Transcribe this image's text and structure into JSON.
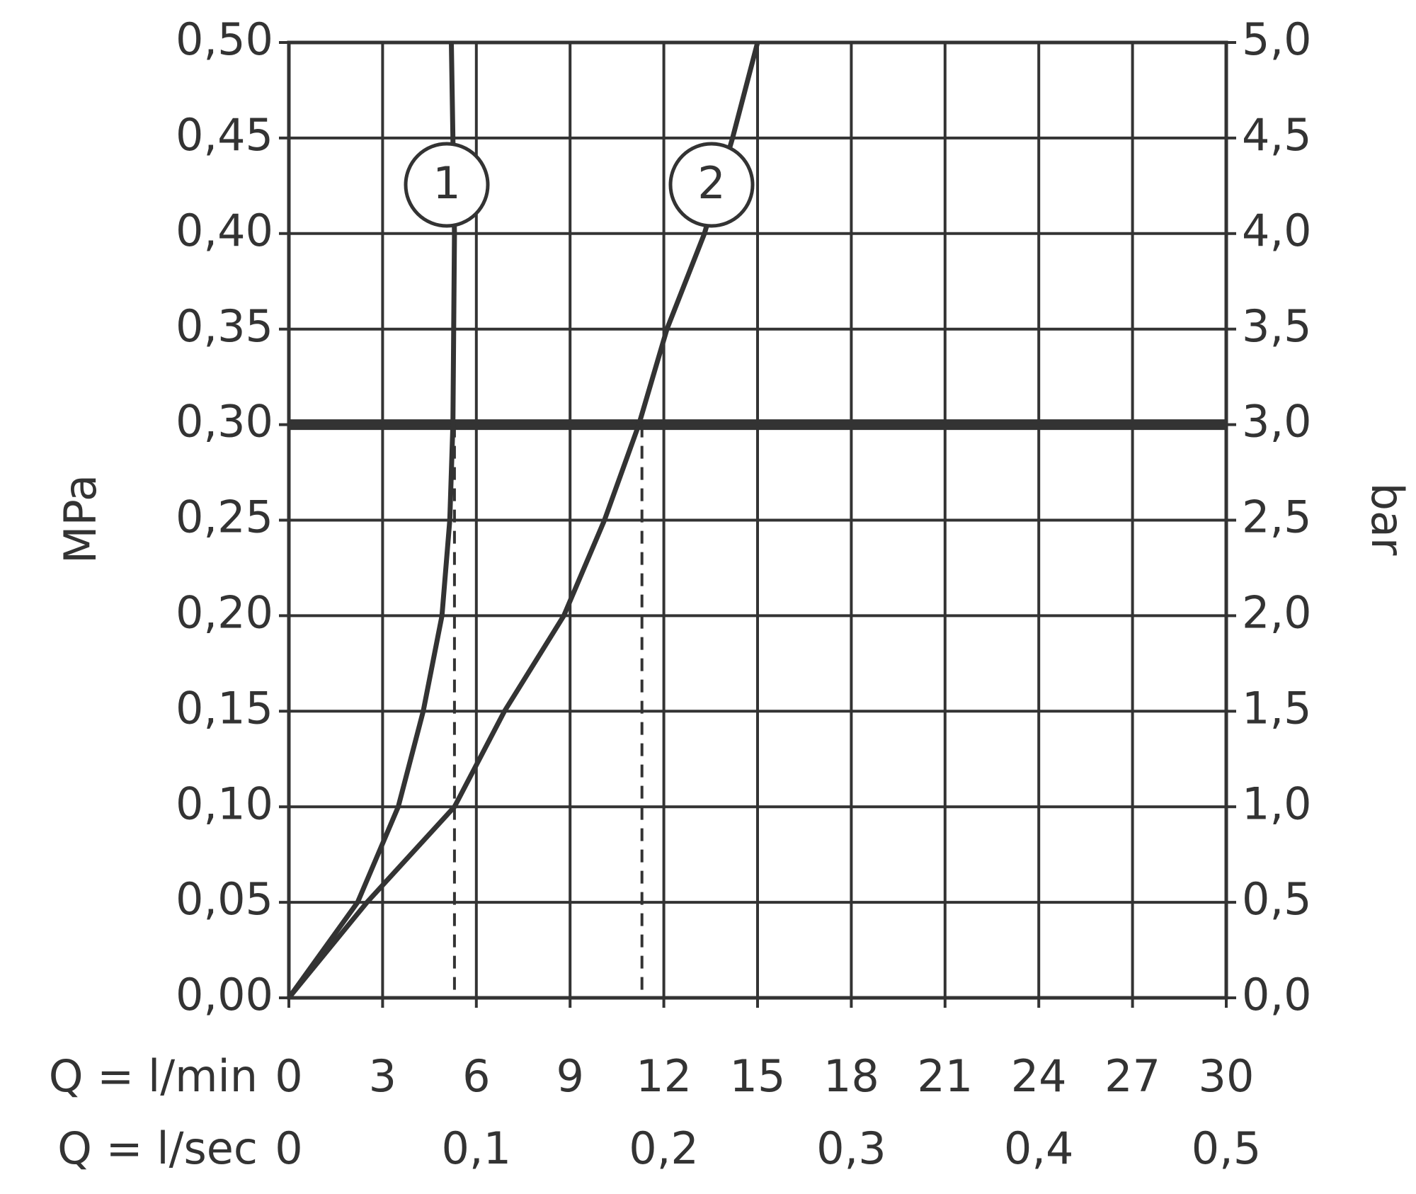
{
  "chart_data": {
    "type": "line",
    "y_label": "MPa",
    "y2_label": "bar",
    "x_label": "Q = l/min",
    "x2_label": "Q = l/sec",
    "xlim": [
      0,
      30
    ],
    "xticks": [
      0,
      3,
      6,
      9,
      12,
      15,
      18,
      21,
      24,
      27,
      30
    ],
    "x2lim": [
      0,
      0.5
    ],
    "x2ticks": [
      0,
      {
        "value": 0.1,
        "label": "0,1"
      },
      {
        "value": 0.2,
        "label": "0,2"
      },
      {
        "value": 0.3,
        "label": "0,3"
      },
      {
        "value": 0.4,
        "label": "0,4"
      },
      {
        "value": 0.5,
        "label": "0,5"
      }
    ],
    "ylim": [
      0,
      0.5
    ],
    "yticks": [
      {
        "value": 0,
        "label": "0,00"
      },
      {
        "value": 0.05,
        "label": "0,05"
      },
      {
        "value": 0.1,
        "label": "0,10"
      },
      {
        "value": 0.15,
        "label": "0,15"
      },
      {
        "value": 0.2,
        "label": "0,20"
      },
      {
        "value": 0.25,
        "label": "0,25"
      },
      {
        "value": 0.3,
        "label": "0,30"
      },
      {
        "value": 0.35,
        "label": "0,35"
      },
      {
        "value": 0.4,
        "label": "0,40"
      },
      {
        "value": 0.45,
        "label": "0,45"
      },
      {
        "value": 0.5,
        "label": "0,50"
      }
    ],
    "y2lim": [
      0,
      5
    ],
    "y2ticks": [
      {
        "value": 0,
        "label": "0,0"
      },
      {
        "value": 0.5,
        "label": "0,5"
      },
      {
        "value": 1,
        "label": "1,0"
      },
      {
        "value": 1.5,
        "label": "1,5"
      },
      {
        "value": 2,
        "label": "2,0"
      },
      {
        "value": 2.5,
        "label": "2,5"
      },
      {
        "value": 3,
        "label": "3,0"
      },
      {
        "value": 3.5,
        "label": "3,5"
      },
      {
        "value": 4,
        "label": "4,0"
      },
      {
        "value": 4.5,
        "label": "4,5"
      },
      {
        "value": 5,
        "label": "5,0"
      }
    ],
    "grid": true,
    "color": "#333333",
    "reference": {
      "y": 0.3,
      "x": [
        5.3,
        11.3
      ]
    },
    "series": [
      {
        "name": "1",
        "color": "#333333",
        "x": [
          0,
          2.2,
          3.5,
          4.3,
          4.9,
          5.15,
          5.25,
          5.3,
          5.2
        ],
        "values": [
          0,
          0.05,
          0.1,
          0.15,
          0.2,
          0.25,
          0.3,
          0.4,
          0.5
        ]
      },
      {
        "name": "2",
        "color": "#333333",
        "x": [
          0,
          2.5,
          5.3,
          6.9,
          8.8,
          10.1,
          11.2,
          12.1,
          13.3,
          14.2,
          15.0
        ],
        "values": [
          0,
          0.05,
          0.1,
          0.15,
          0.2,
          0.25,
          0.3,
          0.35,
          0.4,
          0.45,
          0.5
        ]
      }
    ]
  }
}
